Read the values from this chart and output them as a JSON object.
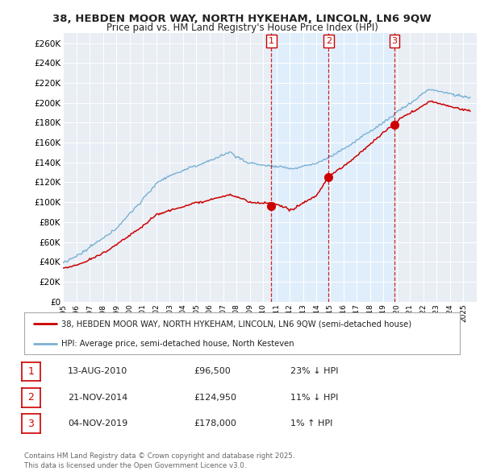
{
  "title1": "38, HEBDEN MOOR WAY, NORTH HYKEHAM, LINCOLN, LN6 9QW",
  "title2": "Price paid vs. HM Land Registry's House Price Index (HPI)",
  "ylabel_ticks": [
    "£0",
    "£20K",
    "£40K",
    "£60K",
    "£80K",
    "£100K",
    "£120K",
    "£140K",
    "£160K",
    "£180K",
    "£200K",
    "£220K",
    "£240K",
    "£260K"
  ],
  "ytick_values": [
    0,
    20000,
    40000,
    60000,
    80000,
    100000,
    120000,
    140000,
    160000,
    180000,
    200000,
    220000,
    240000,
    260000
  ],
  "ylim": [
    0,
    270000
  ],
  "vline_dates": [
    2010.617,
    2014.893,
    2019.843
  ],
  "purchase_date_labels": [
    "13-AUG-2010",
    "21-NOV-2014",
    "04-NOV-2019"
  ],
  "purchase_prices": [
    96500,
    124950,
    178000
  ],
  "purchase_hpi_diff": [
    "23% ↓ HPI",
    "11% ↓ HPI",
    "1% ↑ HPI"
  ],
  "red_line_color": "#cc0000",
  "blue_line_color": "#7ab0d4",
  "shade_color": "#ddeeff",
  "legend_line1": "38, HEBDEN MOOR WAY, NORTH HYKEHAM, LINCOLN, LN6 9QW (semi-detached house)",
  "legend_line2": "HPI: Average price, semi-detached house, North Kesteven",
  "footnote": "Contains HM Land Registry data © Crown copyright and database right 2025.\nThis data is licensed under the Open Government Licence v3.0.",
  "background_color": "#ffffff",
  "plot_bg_color": "#e8eef4",
  "xmin": 1995.0,
  "xmax": 2026.0
}
